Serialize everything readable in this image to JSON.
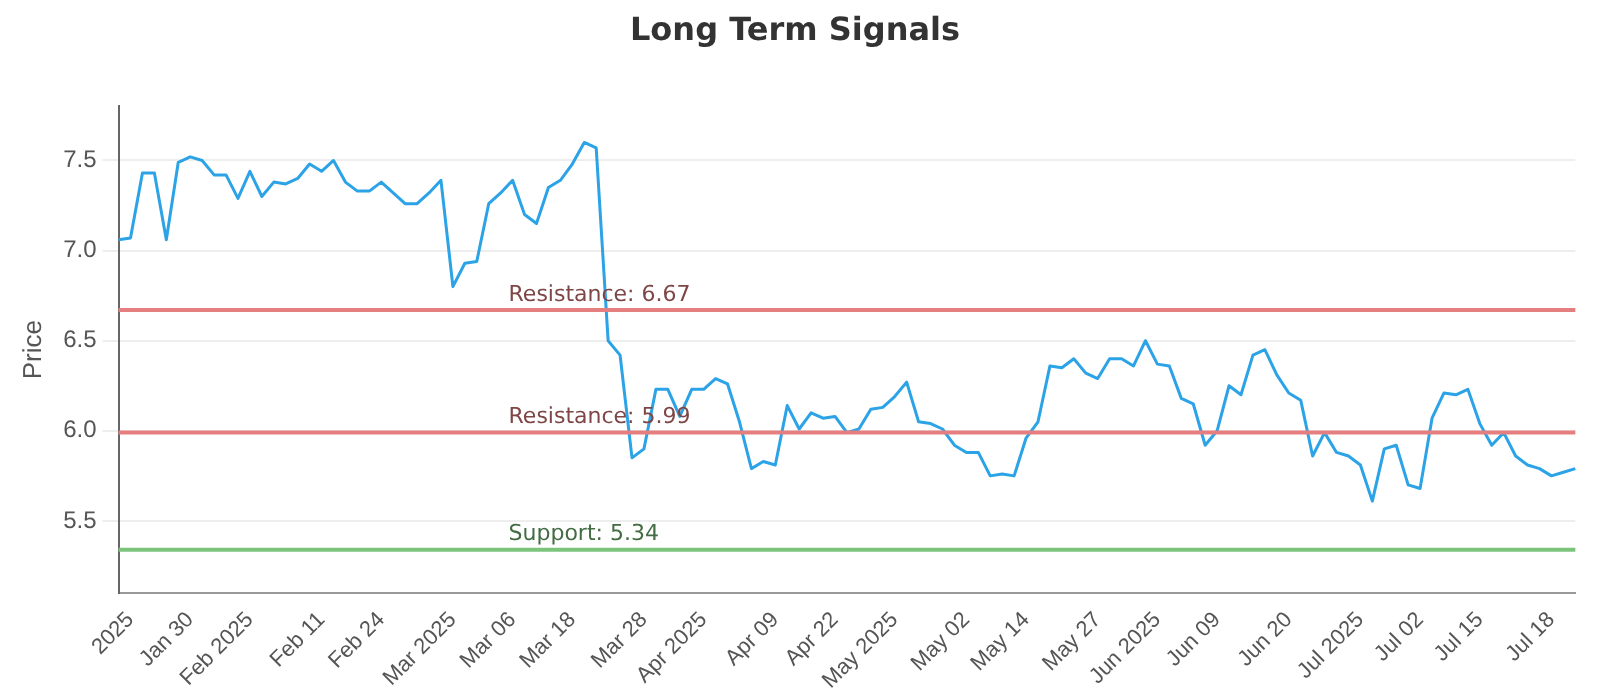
{
  "chart_data": {
    "type": "line",
    "title": "Long Term Signals",
    "ylabel": "Price",
    "categories": [
      null,
      "2025",
      null,
      null,
      null,
      null,
      "Jan 30",
      null,
      null,
      null,
      null,
      "Feb 2025",
      null,
      null,
      null,
      null,
      null,
      "Feb 11",
      null,
      null,
      null,
      null,
      "Feb 24",
      null,
      null,
      null,
      null,
      null,
      "Mar 2025",
      null,
      null,
      null,
      null,
      "Mar 06",
      null,
      null,
      null,
      null,
      "Mar 18",
      null,
      null,
      null,
      null,
      null,
      "Mar 28",
      null,
      null,
      null,
      null,
      "Apr 2025",
      null,
      null,
      null,
      null,
      null,
      "Apr 09",
      null,
      null,
      null,
      null,
      "Apr 22",
      null,
      null,
      null,
      null,
      "May 2025",
      null,
      null,
      null,
      null,
      null,
      "May 02",
      null,
      null,
      null,
      null,
      "May 14",
      null,
      null,
      null,
      null,
      null,
      "May 27",
      null,
      null,
      null,
      null,
      "Jun 2025",
      null,
      null,
      null,
      null,
      "Jun 09",
      null,
      null,
      null,
      null,
      null,
      "Jun 20",
      null,
      null,
      null,
      null,
      null,
      "Jul 2025",
      null,
      null,
      null,
      null,
      "Jul 02",
      null,
      null,
      null,
      null,
      "Jul 15",
      null,
      null,
      null,
      null,
      null,
      "Jul 18",
      null,
      null
    ],
    "series": [
      {
        "color": "#2ba3e6",
        "values": [
          7.06,
          7.07,
          7.43,
          7.43,
          7.06,
          7.49,
          7.52,
          7.5,
          7.42,
          7.42,
          7.29,
          7.44,
          7.3,
          7.38,
          7.37,
          7.4,
          7.48,
          7.44,
          7.5,
          7.38,
          7.33,
          7.33,
          7.38,
          7.32,
          7.26,
          7.26,
          7.32,
          7.39,
          6.8,
          6.93,
          6.94,
          7.26,
          7.32,
          7.39,
          7.2,
          7.15,
          7.35,
          7.39,
          7.48,
          7.6,
          7.57,
          6.5,
          6.42,
          5.85,
          5.9,
          6.23,
          6.23,
          6.08,
          6.23,
          6.23,
          6.29,
          6.26,
          6.05,
          5.79,
          5.83,
          5.81,
          6.14,
          6.01,
          6.1,
          6.07,
          6.08,
          5.99,
          6.01,
          6.12,
          6.13,
          6.19,
          6.27,
          6.05,
          6.04,
          6.01,
          5.92,
          5.88,
          5.88,
          5.75,
          5.76,
          5.75,
          5.96,
          6.05,
          6.36,
          6.35,
          6.4,
          6.32,
          6.29,
          6.4,
          6.4,
          6.36,
          6.5,
          6.37,
          6.36,
          6.18,
          6.15,
          5.92,
          6.0,
          6.25,
          6.2,
          6.42,
          6.45,
          6.31,
          6.21,
          6.17,
          5.86,
          5.99,
          5.88,
          5.86,
          5.81,
          5.61,
          5.9,
          5.92,
          5.7,
          5.68,
          6.07,
          6.21,
          6.2,
          6.23,
          6.04,
          5.92,
          5.99,
          5.86,
          5.81,
          5.79,
          5.75,
          5.77,
          5.79
        ]
      }
    ],
    "ylim": [
      5.1,
      7.8
    ],
    "yticks": [
      {
        "value": 5.5,
        "label": "5.5"
      },
      {
        "value": 6,
        "label": "6.0"
      },
      {
        "value": 6.5,
        "label": "6.5"
      },
      {
        "value": 7,
        "label": "7.0"
      },
      {
        "value": 7.5,
        "label": "7.5"
      }
    ],
    "ref_lines": [
      {
        "axis": "y",
        "value": 6.67,
        "label": "Resistance: 6.67",
        "color": "#e57f7f"
      },
      {
        "axis": "y",
        "value": 5.99,
        "label": "Resistance: 5.99",
        "color": "#e57f7f"
      },
      {
        "axis": "y",
        "value": 5.34,
        "label": "Support: 5.34",
        "color": "#7cc47c"
      }
    ],
    "grid": "y",
    "legend": false,
    "marker": "none",
    "line_style": "solid"
  }
}
